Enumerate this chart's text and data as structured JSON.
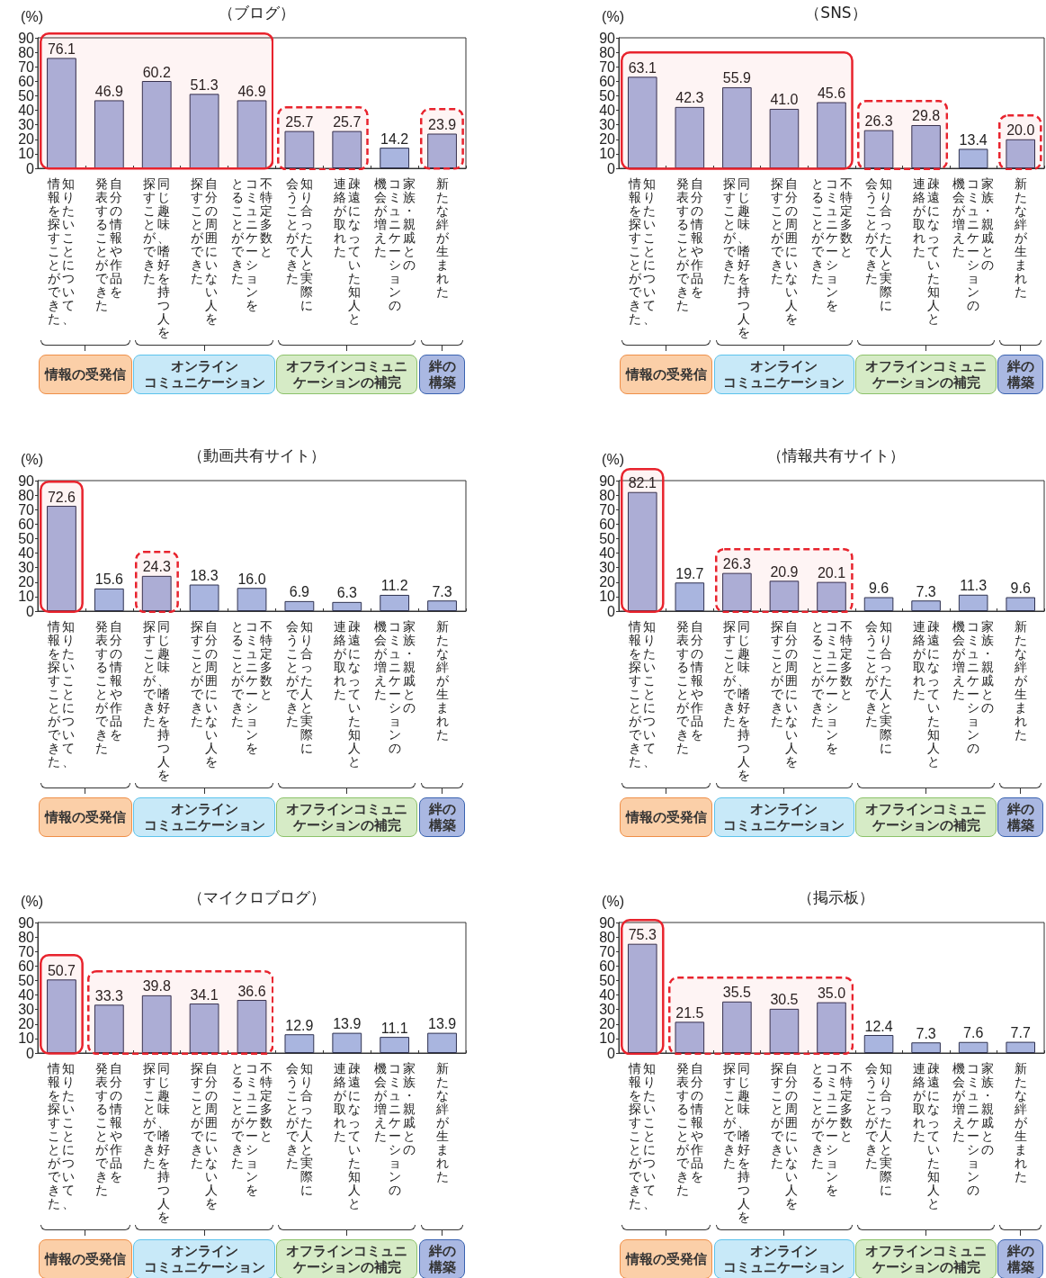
{
  "chart_data": [
    {
      "type": "bar",
      "title": "（ブログ）",
      "ylabel": "(%)",
      "color": "#a9b5df",
      "ylim": [
        0,
        90
      ],
      "yticks": [
        0,
        10,
        20,
        30,
        40,
        50,
        60,
        70,
        80,
        90
      ],
      "categories": [
        "知りたいことについて、情報を探すことができた",
        "自分の情報や作品を発表することができた",
        "同じ趣味、嗜好を持つ人を探すことができた",
        "自分の周囲にいない人を探すことができた",
        "不特定多数とコミュニケーションをとることができた",
        "知り合った人と実際に会うことができた",
        "疎遠になっていた知人と連絡が取れた",
        "家族・親戚とのコミュニケーションの機会が増えた",
        "新たな絆が生まれた"
      ],
      "values": [
        76.1,
        46.9,
        60.2,
        51.3,
        46.9,
        25.7,
        25.7,
        14.2,
        23.9
      ],
      "value_labels": [
        "76.1",
        "46.9",
        "60.2",
        "51.3",
        "46.9",
        "25.7",
        "25.7",
        "14.2",
        "23.9"
      ],
      "bands": [
        {
          "axis": "x",
          "from": "知りたいことについて、情報を探すことができた",
          "to": "不特定多数とコミュニケーションをとることができた",
          "color": "#e8232d"
        },
        {
          "axis": "x",
          "from": "知り合った人と実際に会うことができた",
          "to": "疎遠になっていた知人と連絡が取れた",
          "color": "#e8232d"
        },
        {
          "axis": "x",
          "from": "新たな絆が生まれた",
          "to": "新たな絆が生まれた",
          "color": "#e8232d"
        }
      ],
      "annotations": [
        "情報の受発信",
        "オンラインコミュニケーション",
        "オフラインコミュニケーションの補完",
        "絆の構築"
      ]
    },
    {
      "type": "bar",
      "title": "（SNS）",
      "ylabel": "(%)",
      "color": "#a9b5df",
      "ylim": [
        0,
        90
      ],
      "yticks": [
        0,
        10,
        20,
        30,
        40,
        50,
        60,
        70,
        80,
        90
      ],
      "categories": [
        "知りたいことについて、情報を探すことができた",
        "自分の情報や作品を発表することができた",
        "同じ趣味、嗜好を持つ人を探すことができた",
        "自分の周囲にいない人を探すことができた",
        "不特定多数とコミュニケーションをとることができた",
        "知り合った人と実際に会うことができた",
        "疎遠になっていた知人と連絡が取れた",
        "家族・親戚とのコミュニケーションの機会が増えた",
        "新たな絆が生まれた"
      ],
      "values": [
        63.1,
        42.3,
        55.9,
        41.0,
        45.6,
        26.3,
        29.8,
        13.4,
        20.0
      ],
      "value_labels": [
        "63.1",
        "42.3",
        "55.9",
        "41.0",
        "45.6",
        "26.3",
        "29.8",
        "13.4",
        "20.0"
      ],
      "bands": [
        {
          "axis": "x",
          "from": "知りたいことについて、情報を探すことができた",
          "to": "不特定多数とコミュニケーションをとることができた",
          "color": "#e8232d"
        },
        {
          "axis": "x",
          "from": "知り合った人と実際に会うことができた",
          "to": "疎遠になっていた知人と連絡が取れた",
          "color": "#e8232d"
        },
        {
          "axis": "x",
          "from": "新たな絆が生まれた",
          "to": "新たな絆が生まれた",
          "color": "#e8232d"
        }
      ],
      "annotations": [
        "情報の受発信",
        "オンラインコミュニケーション",
        "オフラインコミュニケーションの補完",
        "絆の構築"
      ]
    },
    {
      "type": "bar",
      "title": "（動画共有サイト）",
      "ylabel": "(%)",
      "color": "#a9b5df",
      "ylim": [
        0,
        90
      ],
      "yticks": [
        0,
        10,
        20,
        30,
        40,
        50,
        60,
        70,
        80,
        90
      ],
      "categories": [
        "知りたいことについて、情報を探すことができた",
        "自分の情報や作品を発表することができた",
        "同じ趣味、嗜好を持つ人を探すことができた",
        "自分の周囲にいない人を探すことができた",
        "不特定多数とコミュニケーションをとることができた",
        "知り合った人と実際に会うことができた",
        "疎遠になっていた知人と連絡が取れた",
        "家族・親戚とのコミュニケーションの機会が増えた",
        "新たな絆が生まれた"
      ],
      "values": [
        72.6,
        15.6,
        24.3,
        18.3,
        16.0,
        6.9,
        6.3,
        11.2,
        7.3
      ],
      "value_labels": [
        "72.6",
        "15.6",
        "24.3",
        "18.3",
        "16.0",
        "6.9",
        "6.3",
        "11.2",
        "7.3"
      ],
      "bands": [
        {
          "axis": "x",
          "from": "知りたいことについて、情報を探すことができた",
          "to": "知りたいことについて、情報を探すことができた",
          "color": "#e8232d"
        },
        {
          "axis": "x",
          "from": "同じ趣味、嗜好を持つ人を探すことができた",
          "to": "同じ趣味、嗜好を持つ人を探すことができた",
          "color": "#e8232d"
        }
      ],
      "annotations": [
        "情報の受発信",
        "オンラインコミュニケーション",
        "オフラインコミュニケーションの補完",
        "絆の構築"
      ]
    },
    {
      "type": "bar",
      "title": "（情報共有サイト）",
      "ylabel": "(%)",
      "color": "#a9b5df",
      "ylim": [
        0,
        90
      ],
      "yticks": [
        0,
        10,
        20,
        30,
        40,
        50,
        60,
        70,
        80,
        90
      ],
      "categories": [
        "知りたいことについて、情報を探すことができた",
        "自分の情報や作品を発表することができた",
        "同じ趣味、嗜好を持つ人を探すことができた",
        "自分の周囲にいない人を探すことができた",
        "不特定多数とコミュニケーションをとることができた",
        "知り合った人と実際に会うことができた",
        "疎遠になっていた知人と連絡が取れた",
        "家族・親戚とのコミュニケーションの機会が増えた",
        "新たな絆が生まれた"
      ],
      "values": [
        82.1,
        19.7,
        26.3,
        20.9,
        20.1,
        9.6,
        7.3,
        11.3,
        9.6
      ],
      "value_labels": [
        "82.1",
        "19.7",
        "26.3",
        "20.9",
        "20.1",
        "9.6",
        "7.3",
        "11.3",
        "9.6"
      ],
      "bands": [
        {
          "axis": "x",
          "from": "知りたいことについて、情報を探すことができた",
          "to": "知りたいことについて、情報を探すことができた",
          "color": "#e8232d"
        },
        {
          "axis": "x",
          "from": "同じ趣味、嗜好を持つ人を探すことができた",
          "to": "不特定多数とコミュニケーションをとることができた",
          "color": "#e8232d"
        }
      ],
      "annotations": [
        "情報の受発信",
        "オンラインコミュニケーション",
        "オフラインコミュニケーションの補完",
        "絆の構築"
      ]
    },
    {
      "type": "bar",
      "title": "（マイクロブログ）",
      "ylabel": "(%)",
      "color": "#a9b5df",
      "ylim": [
        0,
        90
      ],
      "yticks": [
        0,
        10,
        20,
        30,
        40,
        50,
        60,
        70,
        80,
        90
      ],
      "categories": [
        "知りたいことについて、情報を探すことができた",
        "自分の情報や作品を発表することができた",
        "同じ趣味、嗜好を持つ人を探すことができた",
        "自分の周囲にいない人を探すことができた",
        "不特定多数とコミュニケーションをとることができた",
        "知り合った人と実際に会うことができた",
        "疎遠になっていた知人と連絡が取れた",
        "家族・親戚とのコミュニケーションの機会が増えた",
        "新たな絆が生まれた"
      ],
      "values": [
        50.7,
        33.3,
        39.8,
        34.1,
        36.6,
        12.9,
        13.9,
        11.1,
        13.9
      ],
      "value_labels": [
        "50.7",
        "33.3",
        "39.8",
        "34.1",
        "36.6",
        "12.9",
        "13.9",
        "11.1",
        "13.9"
      ],
      "bands": [
        {
          "axis": "x",
          "from": "知りたいことについて、情報を探すことができた",
          "to": "知りたいことについて、情報を探すことができた",
          "color": "#e8232d"
        },
        {
          "axis": "x",
          "from": "自分の情報や作品を発表することができた",
          "to": "不特定多数とコミュニケーションをとることができた",
          "color": "#e8232d"
        }
      ],
      "annotations": [
        "情報の受発信",
        "オンラインコミュニケーション",
        "オフラインコミュニケーションの補完",
        "絆の構築"
      ]
    },
    {
      "type": "bar",
      "title": "（掲示板）",
      "ylabel": "(%)",
      "color": "#a9b5df",
      "ylim": [
        0,
        90
      ],
      "yticks": [
        0,
        10,
        20,
        30,
        40,
        50,
        60,
        70,
        80,
        90
      ],
      "categories": [
        "知りたいことについて、情報を探すことができた",
        "自分の情報や作品を発表することができた",
        "同じ趣味、嗜好を持つ人を探すことができた",
        "自分の周囲にいない人を探すことができた",
        "不特定多数とコミュニケーションをとることができた",
        "知り合った人と実際に会うことができた",
        "疎遠になっていた知人と連絡が取れた",
        "家族・親戚とのコミュニケーションの機会が増えた",
        "新たな絆が生まれた"
      ],
      "values": [
        75.3,
        21.5,
        35.5,
        30.5,
        35.0,
        12.4,
        7.3,
        7.6,
        7.7
      ],
      "value_labels": [
        "75.3",
        "21.5",
        "35.5",
        "30.5",
        "35.0",
        "12.4",
        "7.3",
        "7.6",
        "7.7"
      ],
      "bands": [
        {
          "axis": "x",
          "from": "知りたいことについて、情報を探すことができた",
          "to": "知りたいことについて、情報を探すことができた",
          "color": "#e8232d"
        },
        {
          "axis": "x",
          "from": "自分の情報や作品を発表することができた",
          "to": "不特定多数とコミュニケーションをとることができた",
          "color": "#e8232d"
        }
      ],
      "annotations": [
        "情報の受発信",
        "オンラインコミュニケーション",
        "オフラインコミュニケーションの補完",
        "絆の構築"
      ]
    }
  ]
}
